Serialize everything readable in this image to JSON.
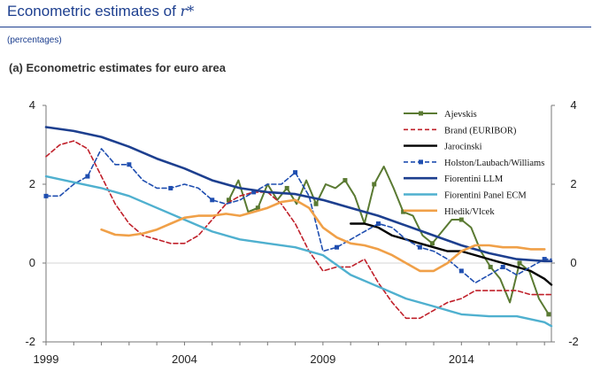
{
  "header": {
    "title": "Econometric estimates of",
    "symbol": "r*"
  },
  "subtitle": "(percentages)",
  "panel_title": "(a) Econometric estimates for euro area",
  "chart_data": {
    "type": "line",
    "xlim": [
      1999,
      2017.25
    ],
    "ylim": [
      -2,
      4
    ],
    "x_ticks": [
      1999,
      2004,
      2009,
      2014
    ],
    "y_ticks": [
      -2,
      0,
      2,
      4
    ],
    "grid": false,
    "legend_position": "top-right",
    "series": [
      {
        "name": "Ajevskis",
        "color": "#5a7a32",
        "style": "solid",
        "width": 2,
        "marker": "square",
        "x": [
          2005.6,
          2005.95,
          2006.3,
          2006.65,
          2007.0,
          2007.35,
          2007.7,
          2008.05,
          2008.4,
          2008.75,
          2009.1,
          2009.45,
          2009.8,
          2010.15,
          2010.5,
          2010.85,
          2011.2,
          2011.55,
          2011.9,
          2012.25,
          2012.6,
          2012.95,
          2013.3,
          2013.65,
          2014.0,
          2014.35,
          2014.7,
          2015.05,
          2015.4,
          2015.75,
          2016.1,
          2016.45,
          2016.8,
          2017.15
        ],
        "y": [
          1.6,
          2.1,
          1.3,
          1.4,
          2.0,
          1.6,
          1.9,
          1.5,
          2.1,
          1.5,
          2.0,
          1.9,
          2.1,
          1.7,
          1.0,
          2.0,
          2.45,
          1.9,
          1.3,
          1.2,
          0.7,
          0.5,
          0.8,
          1.1,
          1.1,
          0.9,
          0.3,
          -0.1,
          -0.4,
          -1.0,
          0.0,
          -0.2,
          -0.9,
          -1.3
        ]
      },
      {
        "name": "Brand (EURIBOR)",
        "color": "#c0202a",
        "style": "dashed",
        "width": 1.6,
        "x": [
          1999.0,
          1999.5,
          2000.0,
          2000.5,
          2001.0,
          2001.5,
          2002.0,
          2002.5,
          2003.0,
          2003.5,
          2004.0,
          2004.5,
          2005.0,
          2005.5,
          2006.0,
          2006.5,
          2007.0,
          2007.5,
          2008.0,
          2008.5,
          2009.0,
          2009.5,
          2010.0,
          2010.5,
          2011.0,
          2011.5,
          2012.0,
          2012.5,
          2013.0,
          2013.5,
          2014.0,
          2014.5,
          2015.0,
          2015.5,
          2016.0,
          2016.5,
          2017.0,
          2017.25
        ],
        "y": [
          2.7,
          3.0,
          3.1,
          2.9,
          2.2,
          1.5,
          1.0,
          0.7,
          0.6,
          0.5,
          0.5,
          0.7,
          1.1,
          1.5,
          1.7,
          1.8,
          1.8,
          1.5,
          1.0,
          0.3,
          -0.2,
          -0.1,
          -0.1,
          0.1,
          -0.5,
          -1.0,
          -1.4,
          -1.4,
          -1.2,
          -1.0,
          -0.9,
          -0.7,
          -0.7,
          -0.7,
          -0.7,
          -0.8,
          -0.8,
          -0.8
        ]
      },
      {
        "name": "Jarocinski",
        "color": "#000000",
        "style": "solid",
        "width": 2.4,
        "x": [
          2010.0,
          2010.5,
          2011.0,
          2011.5,
          2012.0,
          2012.5,
          2013.0,
          2013.5,
          2014.0,
          2014.5,
          2015.0,
          2015.5,
          2016.0,
          2016.5,
          2017.0,
          2017.25
        ],
        "y": [
          1.0,
          1.0,
          0.9,
          0.7,
          0.6,
          0.5,
          0.4,
          0.3,
          0.3,
          0.2,
          0.1,
          0.0,
          -0.1,
          -0.2,
          -0.4,
          -0.55
        ]
      },
      {
        "name": "Holston/Laubach/Williams",
        "color": "#1f4eb0",
        "style": "dashed",
        "width": 1.6,
        "marker": "square",
        "x": [
          1999.0,
          1999.5,
          2000.0,
          2000.5,
          2001.0,
          2001.5,
          2002.0,
          2002.5,
          2003.0,
          2003.5,
          2004.0,
          2004.5,
          2005.0,
          2005.5,
          2006.0,
          2006.5,
          2007.0,
          2007.5,
          2008.0,
          2008.5,
          2009.0,
          2009.5,
          2010.0,
          2010.5,
          2011.0,
          2011.5,
          2012.0,
          2012.5,
          2013.0,
          2013.5,
          2014.0,
          2014.5,
          2015.0,
          2015.5,
          2016.0,
          2016.5,
          2017.0,
          2017.25
        ],
        "y": [
          1.7,
          1.7,
          2.0,
          2.2,
          2.9,
          2.5,
          2.5,
          2.1,
          1.9,
          1.9,
          2.0,
          1.9,
          1.6,
          1.5,
          1.6,
          1.8,
          2.0,
          2.0,
          2.3,
          1.7,
          0.3,
          0.4,
          0.6,
          0.8,
          1.0,
          0.9,
          0.6,
          0.4,
          0.3,
          0.1,
          -0.2,
          -0.5,
          -0.3,
          -0.1,
          -0.3,
          -0.1,
          0.1,
          0.1
        ]
      },
      {
        "name": "Fiorentini LLM",
        "color": "#1d3f8f",
        "style": "solid",
        "width": 2.6,
        "x": [
          1999.0,
          2000.0,
          2001.0,
          2002.0,
          2003.0,
          2004.0,
          2005.0,
          2006.0,
          2007.0,
          2008.0,
          2009.0,
          2010.0,
          2011.0,
          2012.0,
          2013.0,
          2014.0,
          2015.0,
          2016.0,
          2017.0,
          2017.25
        ],
        "y": [
          3.45,
          3.35,
          3.2,
          2.95,
          2.65,
          2.4,
          2.1,
          1.9,
          1.8,
          1.75,
          1.6,
          1.4,
          1.2,
          0.95,
          0.7,
          0.45,
          0.25,
          0.1,
          0.05,
          0.05
        ]
      },
      {
        "name": "Fiorentini Panel ECM",
        "color": "#4fb0cf",
        "style": "solid",
        "width": 2.4,
        "x": [
          1999.0,
          2000.0,
          2001.0,
          2002.0,
          2003.0,
          2004.0,
          2005.0,
          2006.0,
          2007.0,
          2008.0,
          2009.0,
          2010.0,
          2011.0,
          2012.0,
          2013.0,
          2014.0,
          2015.0,
          2016.0,
          2017.0,
          2017.25
        ],
        "y": [
          2.2,
          2.05,
          1.9,
          1.7,
          1.4,
          1.1,
          0.8,
          0.6,
          0.5,
          0.4,
          0.2,
          -0.3,
          -0.6,
          -0.9,
          -1.1,
          -1.3,
          -1.35,
          -1.35,
          -1.5,
          -1.6
        ]
      },
      {
        "name": "Hledik/Vlcek",
        "color": "#f0a048",
        "style": "solid",
        "width": 2.6,
        "x": [
          2001.0,
          2001.5,
          2002.0,
          2002.5,
          2003.0,
          2003.5,
          2004.0,
          2004.5,
          2005.0,
          2005.5,
          2006.0,
          2006.5,
          2007.0,
          2007.5,
          2008.0,
          2008.5,
          2009.0,
          2009.5,
          2010.0,
          2010.5,
          2011.0,
          2011.5,
          2012.0,
          2012.5,
          2013.0,
          2013.5,
          2014.0,
          2014.5,
          2015.0,
          2015.5,
          2016.0,
          2016.5,
          2017.0
        ],
        "y": [
          0.85,
          0.72,
          0.7,
          0.75,
          0.85,
          1.0,
          1.15,
          1.2,
          1.2,
          1.25,
          1.2,
          1.3,
          1.4,
          1.55,
          1.6,
          1.4,
          0.9,
          0.65,
          0.5,
          0.45,
          0.35,
          0.2,
          0.0,
          -0.2,
          -0.2,
          0.0,
          0.3,
          0.45,
          0.45,
          0.4,
          0.4,
          0.35,
          0.35
        ]
      }
    ]
  }
}
